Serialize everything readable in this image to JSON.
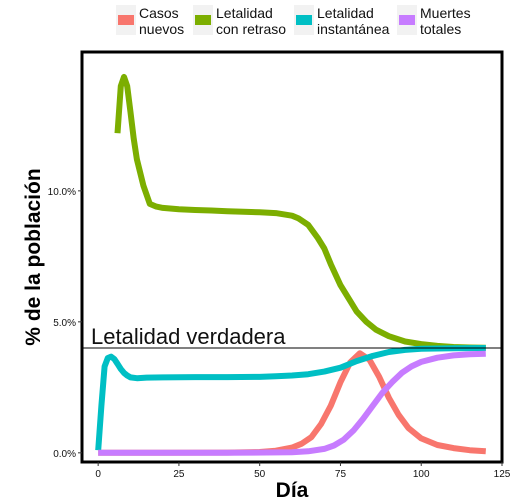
{
  "chart_data": {
    "type": "line",
    "xlabel": "Día",
    "ylabel": "% de la población",
    "xlim": [
      -5,
      125
    ],
    "ylim": [
      -0.35,
      15.3
    ],
    "x_ticks": [
      0,
      25,
      50,
      75,
      100,
      125
    ],
    "x_tick_labels": [
      "0",
      "25",
      "50",
      "75",
      "100",
      "125"
    ],
    "y_ticks": [
      0,
      5,
      10
    ],
    "y_tick_labels": [
      "0.0%",
      "5.0%",
      "10.0%"
    ],
    "grid": false,
    "legend_position": "top",
    "reference_line": {
      "y": 4,
      "label": "Letalidad verdadera"
    },
    "series": [
      {
        "name": "Casos nuevos",
        "legend_lines": [
          "Casos",
          "nuevos"
        ],
        "color": "#F8766D",
        "x": [
          0,
          20,
          40,
          50,
          55,
          60,
          63,
          66,
          69,
          72,
          75,
          78,
          81,
          84,
          87,
          90,
          93,
          96,
          100,
          105,
          110,
          115,
          120
        ],
        "y": [
          0,
          0,
          0.01,
          0.03,
          0.08,
          0.2,
          0.35,
          0.6,
          1.1,
          1.8,
          2.7,
          3.45,
          3.8,
          3.55,
          2.9,
          2.1,
          1.45,
          0.95,
          0.55,
          0.3,
          0.18,
          0.1,
          0.06
        ]
      },
      {
        "name": "Letalidad con retraso",
        "legend_lines": [
          "Letalidad",
          "con retraso"
        ],
        "color": "#7CAE00",
        "x": [
          6,
          7,
          8,
          9,
          10,
          11,
          12,
          14,
          16,
          18,
          20,
          25,
          30,
          35,
          40,
          45,
          50,
          55,
          60,
          62,
          65,
          68,
          70,
          72,
          75,
          78,
          80,
          83,
          86,
          90,
          95,
          100,
          105,
          110,
          115,
          120
        ],
        "y": [
          12.2,
          14.0,
          14.35,
          14.0,
          13.0,
          12.0,
          11.2,
          10.2,
          9.5,
          9.4,
          9.35,
          9.3,
          9.27,
          9.25,
          9.22,
          9.2,
          9.18,
          9.15,
          9.05,
          8.95,
          8.7,
          8.2,
          7.8,
          7.2,
          6.4,
          5.8,
          5.4,
          5.0,
          4.7,
          4.45,
          4.25,
          4.15,
          4.08,
          4.04,
          4.02,
          4.01
        ]
      },
      {
        "name": "Letalidad instantánea",
        "legend_lines": [
          "Letalidad",
          "instantánea"
        ],
        "color": "#00BFC4",
        "x": [
          0,
          1,
          2,
          3,
          4,
          5,
          6,
          7,
          8,
          9,
          10,
          12,
          15,
          20,
          30,
          40,
          50,
          55,
          60,
          65,
          70,
          75,
          80,
          85,
          90,
          95,
          100,
          110,
          120
        ],
        "y": [
          0.1,
          1.8,
          3.3,
          3.62,
          3.67,
          3.58,
          3.4,
          3.2,
          3.05,
          2.95,
          2.88,
          2.85,
          2.87,
          2.88,
          2.89,
          2.89,
          2.9,
          2.92,
          2.95,
          3.0,
          3.1,
          3.25,
          3.5,
          3.7,
          3.85,
          3.93,
          3.97,
          3.99,
          4.0
        ]
      },
      {
        "name": "Muertes totales",
        "legend_lines": [
          "Muertes",
          "totales"
        ],
        "color": "#C77CFF",
        "x": [
          0,
          20,
          40,
          60,
          65,
          70,
          73,
          76,
          79,
          82,
          85,
          88,
          91,
          94,
          97,
          100,
          105,
          110,
          115,
          120
        ],
        "y": [
          0,
          0,
          0,
          0.02,
          0.06,
          0.15,
          0.28,
          0.5,
          0.85,
          1.3,
          1.8,
          2.3,
          2.7,
          3.05,
          3.3,
          3.47,
          3.63,
          3.72,
          3.76,
          3.78
        ]
      }
    ]
  }
}
